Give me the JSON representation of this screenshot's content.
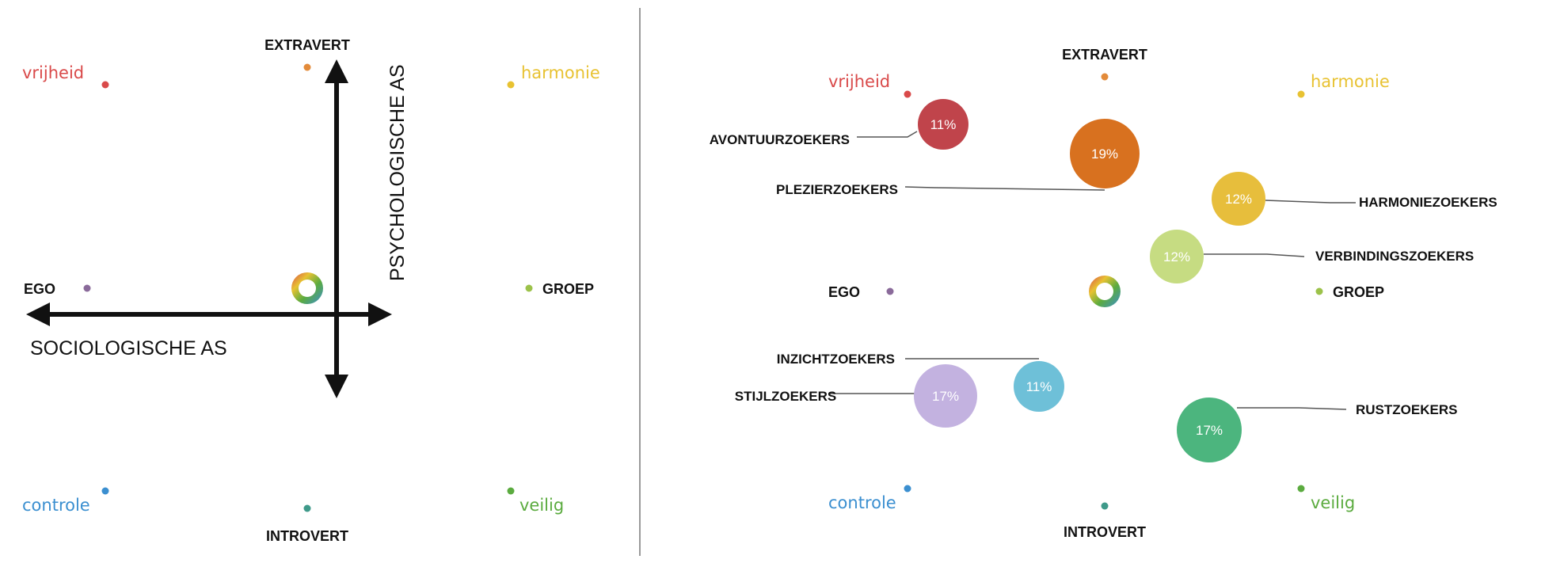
{
  "colors": {
    "vrijheid": "#d94a4a",
    "harmonie": "#e8c232",
    "controle": "#3b8fd0",
    "veilig": "#5bab3f",
    "ego_dot": "#8a6a9a",
    "groep_dot": "#9cc24a",
    "extravert_dot": "#e38b3a",
    "introvert_dot": "#3f9a8a"
  },
  "left": {
    "extravert": "EXTRAVERT",
    "introvert": "INTROVERT",
    "ego": "EGO",
    "groep": "GROEP",
    "vrijheid": "vrijheid",
    "harmonie": "harmonie",
    "controle": "controle",
    "veilig": "veilig",
    "psych_axis": "PSYCHOLOGISCHE AS",
    "socio_axis": "SOCIOLOGISCHE AS"
  },
  "right": {
    "extravert": "EXTRAVERT",
    "introvert": "INTROVERT",
    "ego": "EGO",
    "groep": "GROEP",
    "vrijheid": "vrijheid",
    "harmonie": "harmonie",
    "controle": "controle",
    "veilig": "veilig",
    "segments": [
      {
        "id": "avontuurzoekers",
        "name": "AVONTUURZOEKERS",
        "pct": "11%",
        "color": "#c0444b"
      },
      {
        "id": "plezierzoekers",
        "name": "PLEZIERZOEKERS",
        "pct": "19%",
        "color": "#d8711f"
      },
      {
        "id": "harmoniezoekers",
        "name": "HARMONIEZOEKERS",
        "pct": "12%",
        "color": "#e7be3c"
      },
      {
        "id": "verbindingszoekers",
        "name": "VERBINDINGSZOEKERS",
        "pct": "12%",
        "color": "#c6dc82"
      },
      {
        "id": "inzichtzoekers",
        "name": "INZICHTZOEKERS",
        "pct": "11%",
        "color": "#6ec0d8"
      },
      {
        "id": "stijlzoekers",
        "name": "STIJLZOEKERS",
        "pct": "17%",
        "color": "#c3b2e0"
      },
      {
        "id": "rustzoekers",
        "name": "RUSTZOEKERS",
        "pct": "17%",
        "color": "#4cb57e"
      }
    ]
  }
}
